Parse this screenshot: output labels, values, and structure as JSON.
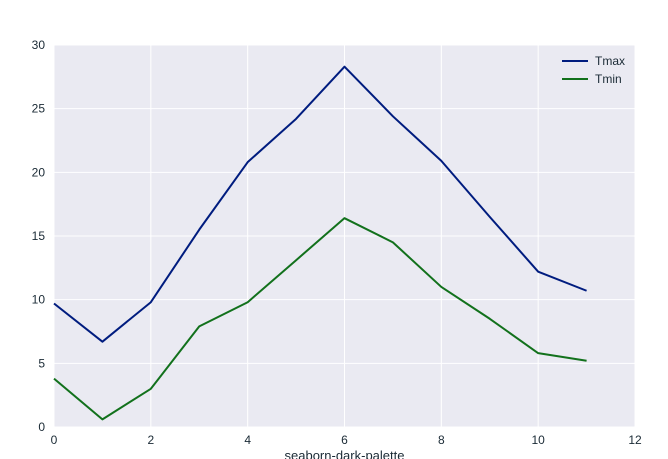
{
  "chart_data": {
    "type": "line",
    "title": "",
    "xlabel": "seaborn-dark-palette",
    "ylabel": "",
    "xlim": [
      0,
      12
    ],
    "ylim": [
      0,
      30
    ],
    "xticks": [
      0,
      2,
      4,
      6,
      8,
      10,
      12
    ],
    "yticks": [
      0,
      5,
      10,
      15,
      20,
      25,
      30
    ],
    "grid": true,
    "legend_position": "top-right",
    "background": "#eaeaf2",
    "x": [
      0,
      1,
      2,
      3,
      4,
      5,
      6,
      7,
      8,
      9,
      10,
      11
    ],
    "series": [
      {
        "name": "Tmax",
        "color": "#001c7f",
        "values": [
          9.7,
          6.7,
          9.8,
          15.5,
          20.8,
          24.2,
          28.3,
          24.4,
          20.9,
          16.5,
          12.2,
          10.7
        ]
      },
      {
        "name": "Tmin",
        "color": "#12711c",
        "values": [
          3.8,
          0.6,
          3.0,
          7.9,
          9.8,
          13.1,
          16.4,
          14.5,
          11.0,
          8.5,
          5.8,
          5.2
        ]
      }
    ]
  }
}
